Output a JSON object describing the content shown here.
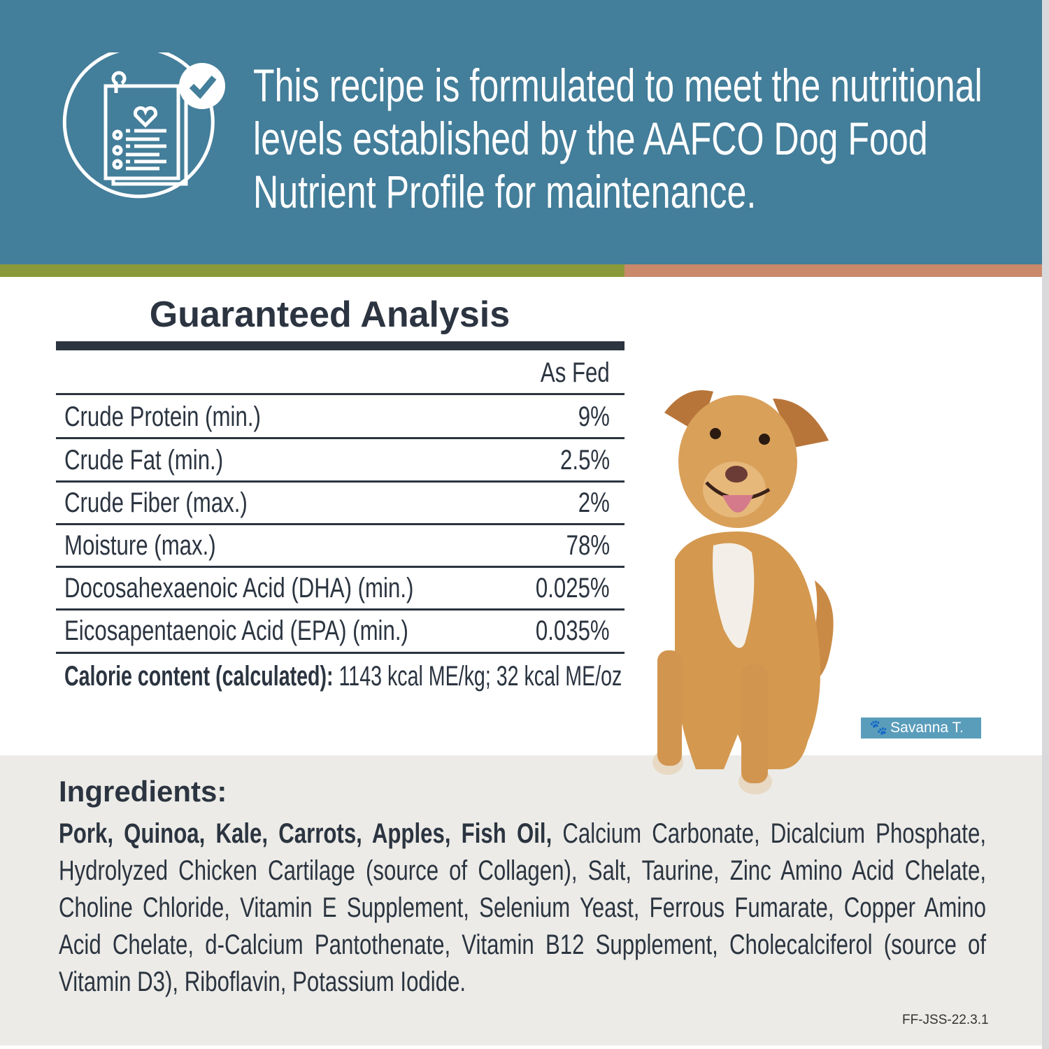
{
  "banner": {
    "headline": "This recipe is formulated to meet the nutritional levels established by the AAFCO Dog Food Nutrient Profile for maintenance.",
    "icon": "nutrition-checklist-icon"
  },
  "colors": {
    "banner": "#437e9a",
    "stripe_green": "#8a9a3a",
    "stripe_orange": "#c9896a",
    "text": "#2b3440",
    "ingredients_bg": "#ecebe7",
    "badge": "#5a9dbb"
  },
  "analysis": {
    "title": "Guaranteed Analysis",
    "column_header": "As Fed",
    "rows": [
      {
        "label": "Crude Protein (min.)",
        "value": "9%"
      },
      {
        "label": "Crude Fat (min.)",
        "value": "2.5%"
      },
      {
        "label": "Crude Fiber (max.)",
        "value": "2%"
      },
      {
        "label": "Moisture (max.)",
        "value": "78%"
      },
      {
        "label": "Docosahexaenoic Acid (DHA) (min.)",
        "value": "0.025%"
      },
      {
        "label": "Eicosapentaenoic Acid (EPA) (min.)",
        "value": "0.035%"
      }
    ],
    "calorie_label": "Calorie content (calculated):",
    "calorie_value": " 1143 kcal ME/kg;  32 kcal ME/oz"
  },
  "photo": {
    "badge_icon": "paw-icon",
    "badge_name": "Savanna T."
  },
  "ingredients": {
    "heading": "Ingredients:",
    "bold": "Pork, Quinoa, Kale, Carrots, Apples, Fish Oil,",
    "rest": " Calcium Carbonate, Dicalcium Phosphate, Hydrolyzed Chicken Cartilage (source of Collagen), Salt, Taurine, Zinc Amino Acid Chelate, Choline Chloride, Vitamin E Supplement, Selenium Yeast, Ferrous Fumarate, Copper Amino Acid Chelate, d-Calcium Pantothenate, Vitamin B12 Supplement, Cholecalciferol (source of Vitamin D3), Riboflavin, Potassium Iodide."
  },
  "footer": {
    "code": "FF-JSS-22.3.1"
  }
}
